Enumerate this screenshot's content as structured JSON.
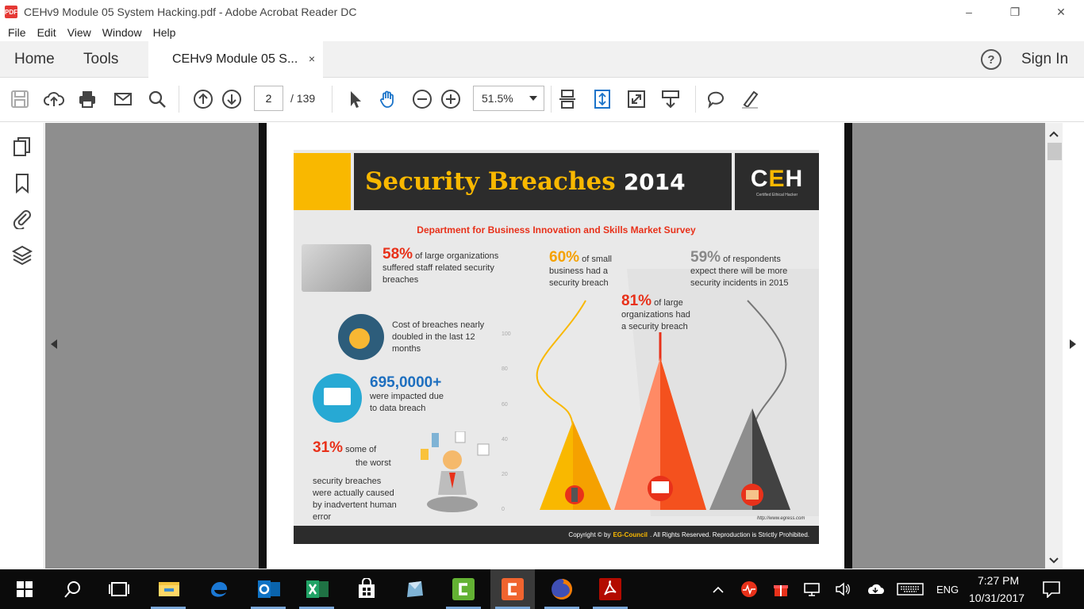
{
  "window": {
    "title": "CEHv9 Module 05 System Hacking.pdf - Adobe Acrobat Reader DC",
    "app_icon": "PDF",
    "controls": [
      "–",
      "❐",
      "✕"
    ]
  },
  "menu": [
    "File",
    "Edit",
    "View",
    "Window",
    "Help"
  ],
  "tabs": {
    "home": "Home",
    "tools": "Tools",
    "document": "CEHv9 Module 05 S...",
    "close": "×",
    "sign_in": "Sign In",
    "help": "?"
  },
  "toolbar": {
    "page_current": "2",
    "page_total": "/ 139",
    "zoom": "51.5%"
  },
  "infographic": {
    "title_main": "Security Breaches",
    "title_year": "2014",
    "logo_c": "C",
    "logo_e": "E",
    "logo_h": "H",
    "logo_sub": "Certified Ethical Hacker",
    "subtitle": "Department for Business Innovation and Skills Market Survey",
    "stat1_pct": "58%",
    "stat1_text_a": "of large organizations",
    "stat1_text_b": "suffered staff related security",
    "stat1_text_c": "breaches",
    "stat2_text_a": "Cost of breaches nearly",
    "stat2_text_b": "doubled in the last 12",
    "stat2_text_c": "months",
    "stat3_pct": "695,0000+",
    "stat3_text_a": "were impacted due",
    "stat3_text_b": "to data breach",
    "stat4_pct": "31%",
    "stat4_text_a": "some of",
    "stat4_text_b": "the worst",
    "stat4_text_c": "security breaches",
    "stat4_text_d": "were actually caused",
    "stat4_text_e": "by inadvertent human",
    "stat4_text_f": "error",
    "stat5_pct": "60%",
    "stat5_text_a": "of small",
    "stat5_text_b": "business had a",
    "stat5_text_c": "security breach",
    "stat6_pct": "81%",
    "stat6_text_a": "of large",
    "stat6_text_b": "organizations had",
    "stat6_text_c": "a security breach",
    "stat7_pct": "59%",
    "stat7_text_a": "of respondents",
    "stat7_text_b": "expect there will be more",
    "stat7_text_c": "security incidents in 2015",
    "yticks": [
      "100",
      "80",
      "60",
      "40",
      "20",
      "0"
    ],
    "url": "http://www.egress.com",
    "copyright_a": "Copyright © by",
    "copyright_org": "EG-Council",
    "copyright_b": ". All Rights Reserved. Reproduction is Strictly Prohibited."
  },
  "taskbar": {
    "time": "7:27 PM",
    "date": "10/31/2017",
    "lang": "ENG"
  },
  "colors": {
    "accent_yellow": "#f9b800",
    "accent_red": "#e8311a",
    "dark": "#2c2c2c"
  }
}
